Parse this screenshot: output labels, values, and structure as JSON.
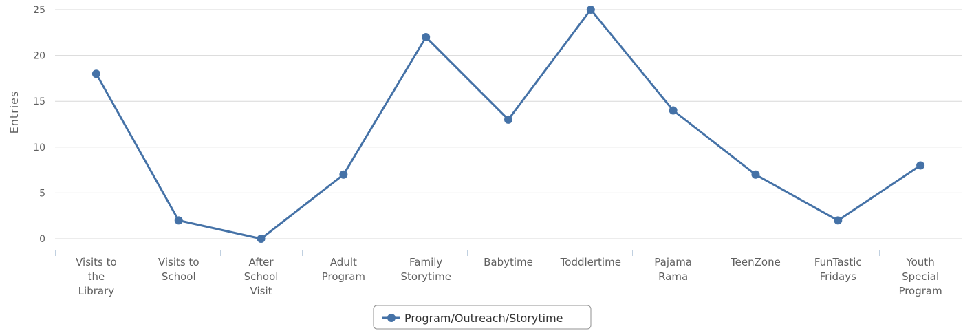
{
  "chart_data": {
    "type": "line",
    "title": "",
    "xlabel": "",
    "ylabel": "Entries",
    "ylim": [
      0,
      25
    ],
    "yticks": [
      0,
      5,
      10,
      15,
      20,
      25
    ],
    "grid": true,
    "legend_position": "bottom-center",
    "categories": [
      [
        "Visits to",
        "the",
        "Library"
      ],
      [
        "Visits to",
        "School"
      ],
      [
        "After",
        "School",
        "Visit"
      ],
      [
        "Adult",
        "Program"
      ],
      [
        "Family",
        "Storytime"
      ],
      [
        "Babytime"
      ],
      [
        "Toddlertime"
      ],
      [
        "Pajama",
        "Rama"
      ],
      [
        "TeenZone"
      ],
      [
        "FunTastic",
        "Fridays"
      ],
      [
        "Youth",
        "Special",
        "Program"
      ]
    ],
    "series": [
      {
        "name": "Program/Outreach/Storytime",
        "color": "#4572a7",
        "values": [
          18,
          2,
          0,
          7,
          22,
          13,
          25,
          14,
          7,
          2,
          8
        ]
      }
    ]
  }
}
